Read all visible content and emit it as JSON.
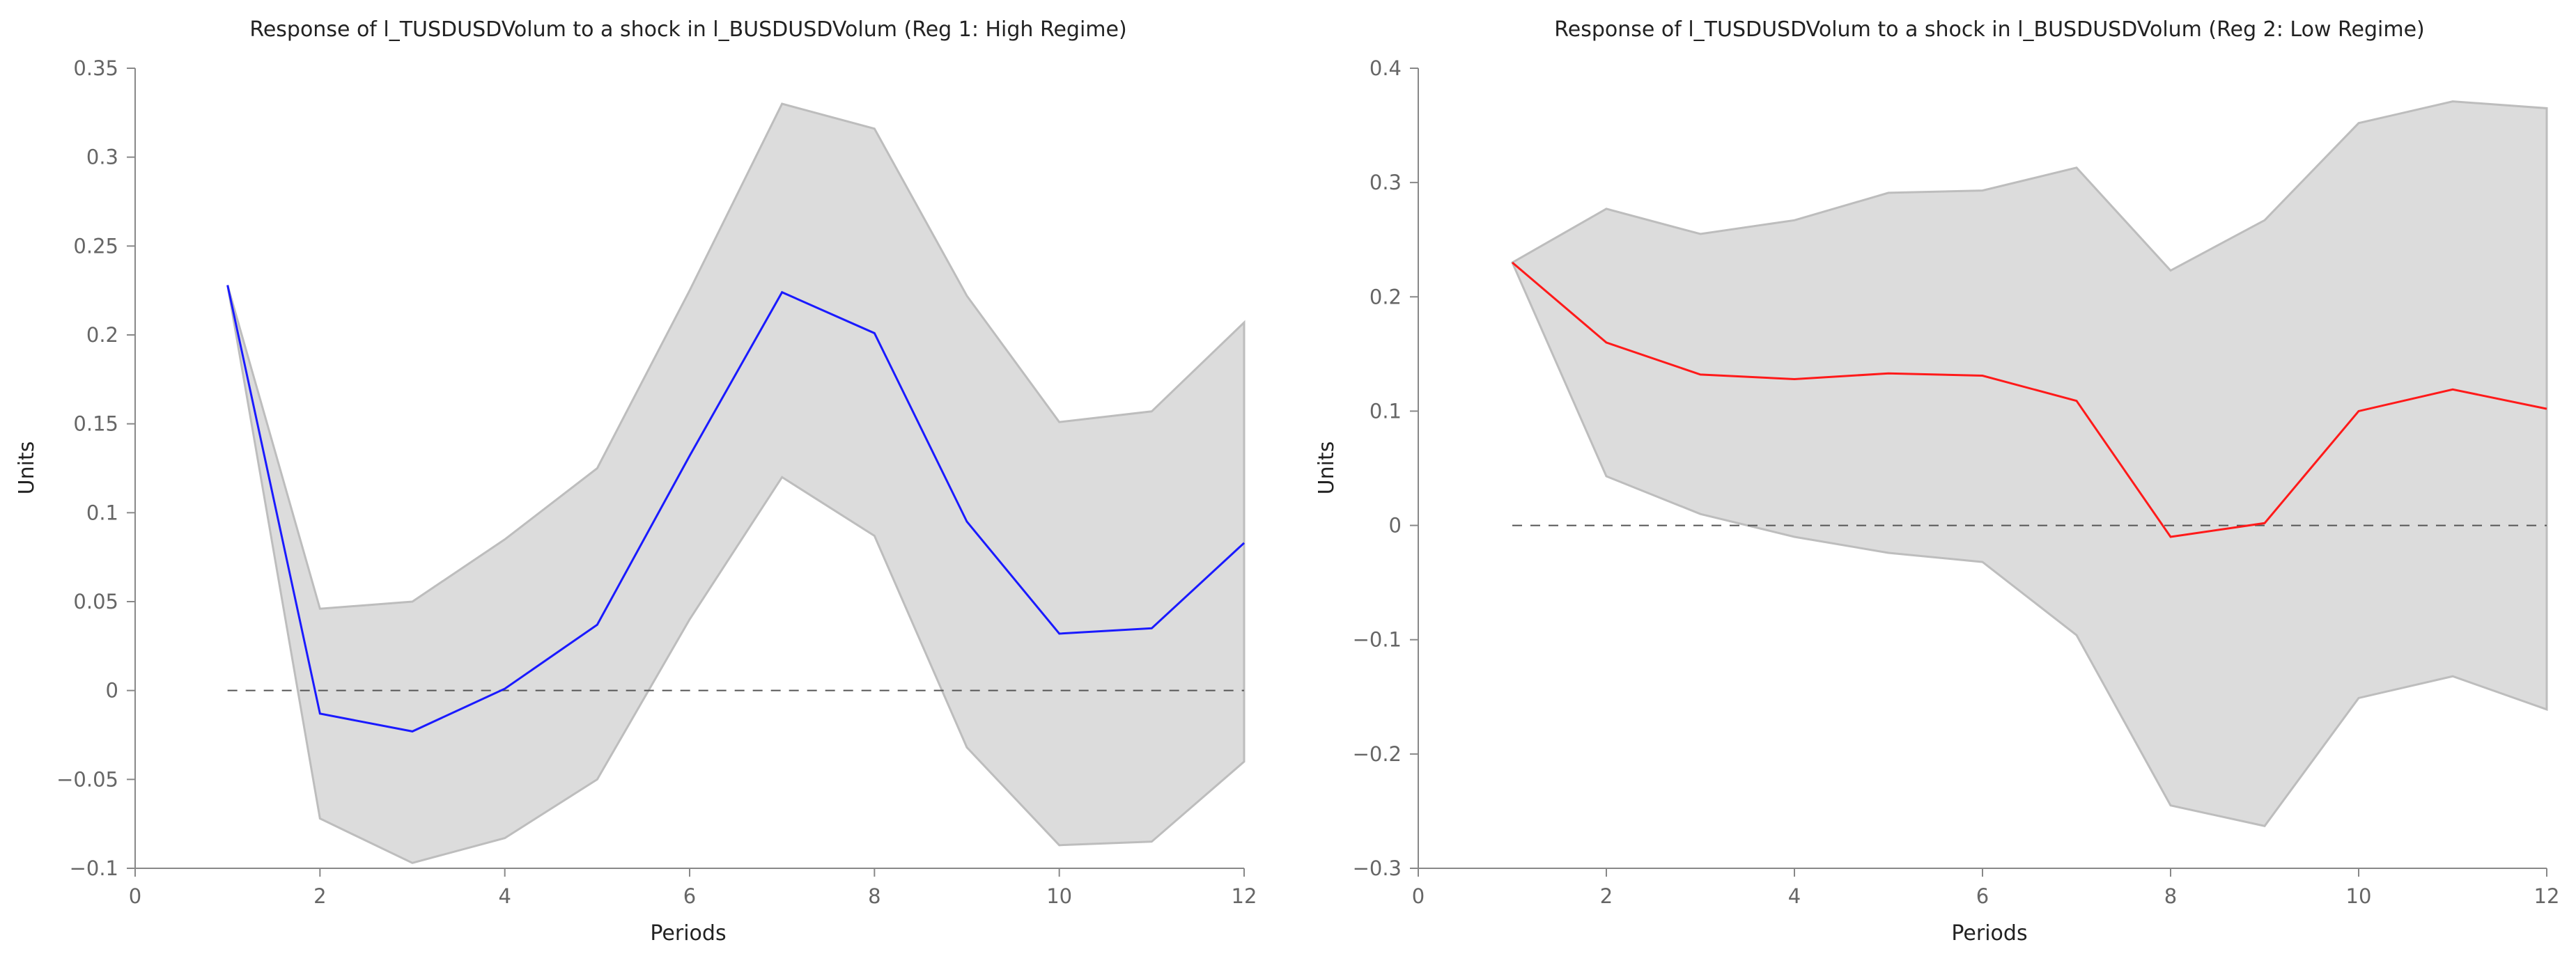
{
  "chart_data": [
    {
      "type": "line",
      "title": "Response of l_TUSDUSDVolum to a shock in l_BUSDUSDVolum (Reg 1: High Regime)",
      "xlabel": "Periods",
      "ylabel": "Units",
      "xlim": [
        0,
        12
      ],
      "ylim": [
        -0.1,
        0.35
      ],
      "xticks": [
        0,
        2,
        4,
        6,
        8,
        10,
        12
      ],
      "yticks": [
        -0.1,
        -0.05,
        0,
        0.05,
        0.1,
        0.15,
        0.2,
        0.25,
        0.3,
        0.35
      ],
      "ytick_labels": [
        "−0.1",
        "−0.05",
        "0",
        "0.05",
        "0.1",
        "0.15",
        "0.2",
        "0.25",
        "0.3",
        "0.35"
      ],
      "grid": false,
      "zero_line": true,
      "line_color": "#1a1aff",
      "band_color": "#dcdcdc",
      "x": [
        1,
        2,
        3,
        4,
        5,
        6,
        7,
        8,
        9,
        10,
        11,
        12
      ],
      "series": [
        {
          "name": "Response",
          "values": [
            0.228,
            -0.013,
            -0.023,
            0.001,
            0.037,
            0.132,
            0.224,
            0.201,
            0.095,
            0.032,
            0.035,
            0.083
          ]
        },
        {
          "name": "Upper",
          "values": [
            0.228,
            0.046,
            0.05,
            0.085,
            0.125,
            0.225,
            0.33,
            0.316,
            0.222,
            0.151,
            0.157,
            0.207
          ]
        },
        {
          "name": "Lower",
          "values": [
            0.228,
            -0.072,
            -0.097,
            -0.083,
            -0.05,
            0.04,
            0.12,
            0.087,
            -0.032,
            -0.087,
            -0.085,
            -0.04
          ]
        }
      ]
    },
    {
      "type": "line",
      "title": "Response of l_TUSDUSDVolum to a shock in l_BUSDUSDVolum (Reg 2: Low Regime)",
      "xlabel": "Periods",
      "ylabel": "Units",
      "xlim": [
        0,
        12
      ],
      "ylim": [
        -0.3,
        0.4
      ],
      "xticks": [
        0,
        2,
        4,
        6,
        8,
        10,
        12
      ],
      "yticks": [
        -0.3,
        -0.2,
        -0.1,
        0,
        0.1,
        0.2,
        0.3,
        0.4
      ],
      "ytick_labels": [
        "−0.3",
        "−0.2",
        "−0.1",
        "0",
        "0.1",
        "0.2",
        "0.3",
        "0.4"
      ],
      "grid": false,
      "zero_line": true,
      "line_color": "#ff1a1a",
      "band_color": "#dcdcdc",
      "x": [
        1,
        2,
        3,
        4,
        5,
        6,
        7,
        8,
        9,
        10,
        11,
        12
      ],
      "series": [
        {
          "name": "Response",
          "values": [
            0.23,
            0.16,
            0.132,
            0.128,
            0.133,
            0.131,
            0.109,
            -0.01,
            0.002,
            0.1,
            0.119,
            0.102
          ]
        },
        {
          "name": "Upper",
          "values": [
            0.23,
            0.277,
            0.255,
            0.267,
            0.291,
            0.293,
            0.313,
            0.223,
            0.267,
            0.352,
            0.371,
            0.365
          ]
        },
        {
          "name": "Lower",
          "values": [
            0.23,
            0.043,
            0.01,
            -0.01,
            -0.024,
            -0.032,
            -0.096,
            -0.245,
            -0.263,
            -0.151,
            -0.132,
            -0.161
          ]
        }
      ]
    }
  ]
}
